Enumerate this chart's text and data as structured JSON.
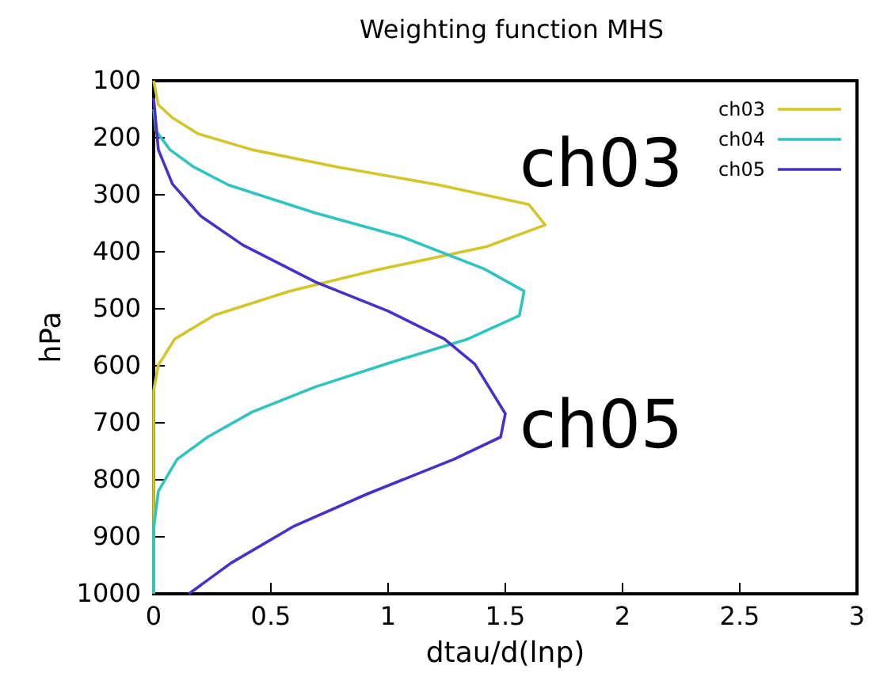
{
  "chart_data": {
    "type": "line",
    "title": "Weighting function MHS",
    "xlabel": "dtau/d(lnp)",
    "ylabel": "hPa",
    "xlim": [
      0,
      3
    ],
    "xticks": [
      0,
      0.5,
      1,
      1.5,
      2,
      2.5,
      3
    ],
    "ylim": [
      1000,
      100
    ],
    "yticks": [
      100,
      200,
      300,
      400,
      500,
      600,
      700,
      800,
      900,
      1000
    ],
    "legend": "top right",
    "grid": false,
    "marker": "none",
    "line_style": "solid",
    "series": [
      {
        "name": "ch03",
        "color": "#d4c52a",
        "x": [
          0,
          0.02,
          0.08,
          0.19,
          0.42,
          0.78,
          1.22,
          1.6,
          1.67,
          1.42,
          0.95,
          0.58,
          0.26,
          0.09,
          0.02,
          0,
          0
        ],
        "values": [
          100,
          142,
          165,
          193,
          221,
          251,
          283,
          317,
          353,
          391,
          432,
          469,
          511,
          553,
          599,
          644,
          1000
        ]
      },
      {
        "name": "ch04",
        "color": "#2ec4c0",
        "x": [
          0,
          0.01,
          0.07,
          0.17,
          0.32,
          0.69,
          1.06,
          1.41,
          1.58,
          1.56,
          1.34,
          1.02,
          0.69,
          0.42,
          0.23,
          0.1,
          0.02,
          0,
          0
        ],
        "values": [
          150,
          188,
          221,
          251,
          283,
          332,
          374,
          430,
          469,
          512,
          553,
          593,
          637,
          681,
          725,
          764,
          820,
          885,
          1000
        ]
      },
      {
        "name": "ch05",
        "color": "#4a2fc8",
        "x": [
          0,
          0.02,
          0.08,
          0.2,
          0.38,
          0.69,
          1.0,
          1.24,
          1.37,
          1.5,
          1.48,
          1.28,
          0.91,
          0.6,
          0.33,
          0.15
        ],
        "values": [
          130,
          221,
          281,
          337,
          388,
          453,
          504,
          553,
          597,
          684,
          725,
          764,
          825,
          881,
          946,
          1000
        ]
      }
    ],
    "annotations": [
      "ch03",
      "ch05"
    ]
  }
}
